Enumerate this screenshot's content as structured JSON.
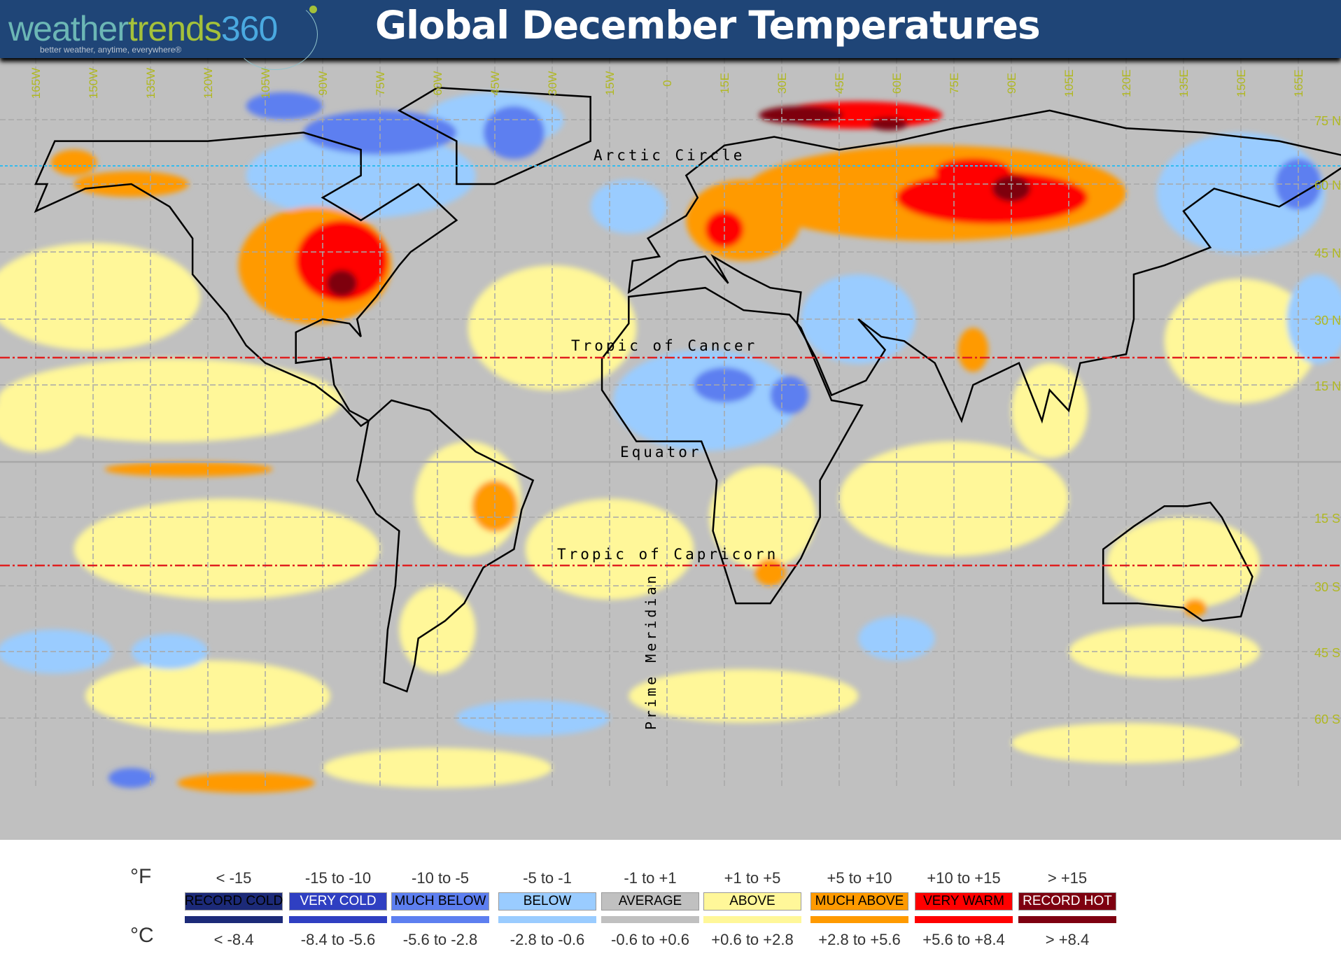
{
  "header": {
    "logo": {
      "part1": "weather",
      "part2": "trends",
      "part3": "360",
      "tagline": "better weather, anytime, everywhere®"
    },
    "title": "Global December Temperatures"
  },
  "map": {
    "longitude_labels": [
      "165W",
      "150W",
      "135W",
      "120W",
      "105W",
      "90W",
      "75W",
      "60W",
      "45W",
      "30W",
      "15W",
      "0",
      "15E",
      "30E",
      "45E",
      "60E",
      "75E",
      "90E",
      "105E",
      "120E",
      "135E",
      "150E",
      "165E"
    ],
    "latitude_labels": [
      "75 N",
      "60 N",
      "45 N",
      "30 N",
      "15 N",
      "15 S",
      "30 S",
      "45 S",
      "60 S"
    ],
    "reference_lines": {
      "arctic": "Arctic Circle",
      "cancer": "Tropic of Cancer",
      "equator": "Equator",
      "capricorn": "Tropic of Capricorn",
      "meridian": "Prime Meridian"
    }
  },
  "legend": {
    "f_unit": "°F",
    "c_unit": "°C",
    "categories": [
      {
        "label": "RECORD COLD",
        "f": "< -15",
        "c": "< -8.4",
        "color": "#1c2a78",
        "text": "#000"
      },
      {
        "label": "VERY COLD",
        "f": "-15 to -10",
        "c": "-8.4 to -5.6",
        "color": "#2f3fc2",
        "text": "#fff"
      },
      {
        "label": "MUCH BELOW",
        "f": "-10 to -5",
        "c": "-5.6 to -2.8",
        "color": "#5d7ff0",
        "text": "#000"
      },
      {
        "label": "BELOW",
        "f": "-5 to -1",
        "c": "-2.8 to -0.6",
        "color": "#9accff",
        "text": "#000"
      },
      {
        "label": "AVERAGE",
        "f": "-1 to +1",
        "c": "-0.6 to +0.6",
        "color": "#c0c0c0",
        "text": "#000"
      },
      {
        "label": "ABOVE",
        "f": "+1 to +5",
        "c": "+0.6 to +2.8",
        "color": "#fff799",
        "text": "#000"
      },
      {
        "label": "MUCH ABOVE",
        "f": "+5 to +10",
        "c": "+2.8 to +5.6",
        "color": "#ff9a00",
        "text": "#000"
      },
      {
        "label": "VERY WARM",
        "f": "+10 to +15",
        "c": "+5.6 to +8.4",
        "color": "#ff0000",
        "text": "#000"
      },
      {
        "label": "RECORD HOT",
        "f": "> +15",
        "c": "> +8.4",
        "color": "#7e0010",
        "text": "#fff"
      }
    ]
  }
}
